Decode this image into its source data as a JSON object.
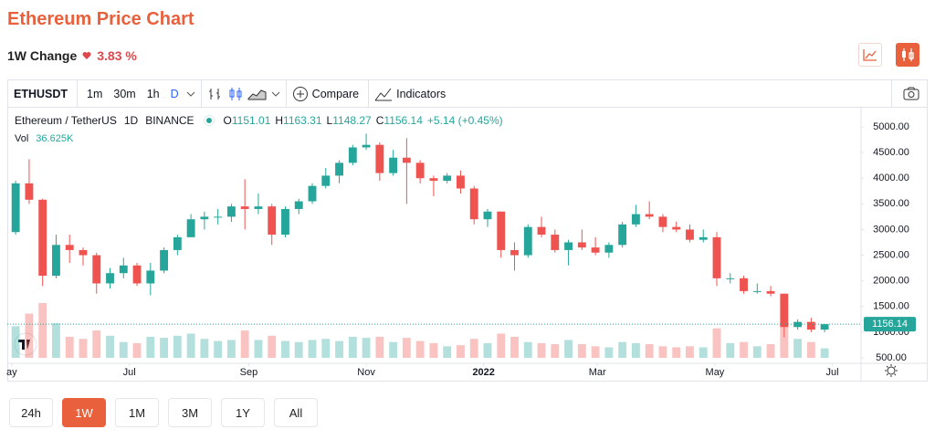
{
  "chart_data": {
    "type": "candlestick",
    "title": "Ethereum Price Chart",
    "change_label": "1W Change",
    "change_value": "3.83 %",
    "symbol": "ETHUSDT",
    "intervals": [
      "1m",
      "30m",
      "1h",
      "D"
    ],
    "compare": "Compare",
    "indicators": "Indicators",
    "pair_name": "Ethereum / TetherUS",
    "resolution": "1D",
    "exchange": "BINANCE",
    "ohlc_letters": [
      "O",
      "H",
      "L",
      "C"
    ],
    "ohlc_values": [
      1151.01,
      1163.31,
      1148.27,
      1156.14
    ],
    "ohlc_change": "+5.14 (+0.45%)",
    "volume_label": "Vol",
    "volume_value": "36.625K",
    "last_price": 1156.14,
    "up_color": "#26a69a",
    "down_color": "#ef5350",
    "categories": [
      null,
      null,
      null,
      null,
      null,
      null,
      null,
      null,
      null,
      null,
      null,
      null,
      null,
      null,
      null,
      null,
      null,
      null,
      null,
      null,
      null,
      null,
      null,
      null,
      null,
      null,
      null,
      null,
      null,
      null,
      null,
      null,
      null,
      null,
      null,
      null,
      null,
      null,
      null,
      null,
      null,
      null,
      null,
      null,
      null,
      null,
      null,
      null,
      null,
      null,
      null,
      null,
      null,
      null,
      null,
      null,
      null,
      null,
      null,
      null,
      null
    ],
    "candles": [
      [
        2950,
        3950,
        2900,
        3900
      ],
      [
        3900,
        4370,
        3500,
        3580
      ],
      [
        3580,
        3600,
        1900,
        2100
      ],
      [
        2100,
        2900,
        2050,
        2700
      ],
      [
        2700,
        2900,
        2350,
        2600
      ],
      [
        2600,
        2650,
        2300,
        2500
      ],
      [
        2500,
        2550,
        1750,
        1950
      ],
      [
        1950,
        2250,
        1850,
        2150
      ],
      [
        2150,
        2450,
        2050,
        2300
      ],
      [
        2300,
        2350,
        1900,
        1950
      ],
      [
        1950,
        2350,
        1720,
        2200
      ],
      [
        2200,
        2650,
        2150,
        2600
      ],
      [
        2600,
        2900,
        2500,
        2850
      ],
      [
        2850,
        3300,
        2850,
        3200
      ],
      [
        3200,
        3350,
        3000,
        3250
      ],
      [
        3250,
        3400,
        3100,
        3250
      ],
      [
        3250,
        3500,
        3150,
        3450
      ],
      [
        3450,
        3980,
        3000,
        3400
      ],
      [
        3400,
        3700,
        3300,
        3450
      ],
      [
        3450,
        3500,
        2700,
        2900
      ],
      [
        2900,
        3450,
        2850,
        3400
      ],
      [
        3400,
        3600,
        3300,
        3550
      ],
      [
        3550,
        3900,
        3500,
        3850
      ],
      [
        3850,
        4200,
        3800,
        4050
      ],
      [
        4050,
        4350,
        3900,
        4300
      ],
      [
        4300,
        4650,
        4250,
        4600
      ],
      [
        4600,
        4870,
        4550,
        4650
      ],
      [
        4650,
        4700,
        3950,
        4100
      ],
      [
        4100,
        4550,
        4050,
        4400
      ],
      [
        4400,
        4780,
        3500,
        4300
      ],
      [
        4300,
        4350,
        3900,
        4000
      ],
      [
        4000,
        4050,
        3650,
        3950
      ],
      [
        3950,
        4100,
        3900,
        4050
      ],
      [
        4050,
        4150,
        3700,
        3800
      ],
      [
        3800,
        3850,
        3100,
        3200
      ],
      [
        3200,
        3400,
        3050,
        3350
      ],
      [
        3350,
        3350,
        2450,
        2600
      ],
      [
        2600,
        2750,
        2200,
        2500
      ],
      [
        2500,
        3100,
        2450,
        3050
      ],
      [
        3050,
        3250,
        2850,
        2900
      ],
      [
        2900,
        3000,
        2550,
        2600
      ],
      [
        2600,
        2800,
        2300,
        2750
      ],
      [
        2750,
        3000,
        2600,
        2650
      ],
      [
        2650,
        2850,
        2500,
        2550
      ],
      [
        2550,
        2750,
        2450,
        2700
      ],
      [
        2700,
        3150,
        2650,
        3100
      ],
      [
        3100,
        3480,
        3050,
        3300
      ],
      [
        3300,
        3550,
        3200,
        3250
      ],
      [
        3250,
        3300,
        2950,
        3050
      ],
      [
        3050,
        3150,
        2950,
        3000
      ],
      [
        3000,
        3100,
        2750,
        2800
      ],
      [
        2800,
        3000,
        2750,
        2850
      ],
      [
        2850,
        2950,
        1900,
        2050
      ],
      [
        2050,
        2150,
        1950,
        2050
      ],
      [
        2050,
        2100,
        1750,
        1800
      ],
      [
        1800,
        1950,
        1750,
        1800
      ],
      [
        1800,
        1900,
        1700,
        1750
      ],
      [
        1750,
        1750,
        900,
        1100
      ],
      [
        1100,
        1250,
        1050,
        1200
      ],
      [
        1200,
        1280,
        1000,
        1050
      ],
      [
        1050,
        1160,
        1000,
        1156.14
      ]
    ],
    "volume": [
      300,
      420,
      520,
      330,
      200,
      180,
      260,
      210,
      150,
      140,
      200,
      190,
      210,
      230,
      180,
      160,
      170,
      260,
      170,
      210,
      160,
      150,
      170,
      180,
      160,
      200,
      190,
      200,
      150,
      190,
      160,
      140,
      110,
      120,
      180,
      140,
      230,
      200,
      150,
      140,
      130,
      170,
      130,
      110,
      100,
      150,
      140,
      130,
      110,
      100,
      110,
      100,
      280,
      140,
      150,
      110,
      130,
      330,
      180,
      150,
      90
    ],
    "xlim": [
      -0.62,
      62.7
    ],
    "xticks": [
      {
        "value": -0.29,
        "label": "ay"
      },
      {
        "value": 8.43,
        "label": "Jul"
      },
      {
        "value": 17.29,
        "label": "Sep"
      },
      {
        "value": 26,
        "label": "Nov"
      },
      {
        "value": 34.71,
        "label": "2022"
      },
      {
        "value": 43.14,
        "label": "Mar"
      },
      {
        "value": 51.86,
        "label": "May"
      },
      {
        "value": 60.57,
        "label": "Jul"
      }
    ],
    "ylim": [
      393,
      5338
    ],
    "yticks": [
      {
        "value": 500,
        "label": "500.00"
      },
      {
        "value": 1000,
        "label": "1000.00"
      },
      {
        "value": 1500,
        "label": "1500.00"
      },
      {
        "value": 2000,
        "label": "2000.00"
      },
      {
        "value": 2500,
        "label": "2500.00"
      },
      {
        "value": 3000,
        "label": "3000.00"
      },
      {
        "value": 3500,
        "label": "3500.00"
      },
      {
        "value": 4000,
        "label": "4000.00"
      },
      {
        "value": 4500,
        "label": "4500.00"
      },
      {
        "value": 5000,
        "label": "5000.00"
      }
    ],
    "ranges": [
      "24h",
      "1W",
      "1M",
      "3M",
      "1Y",
      "All"
    ]
  }
}
